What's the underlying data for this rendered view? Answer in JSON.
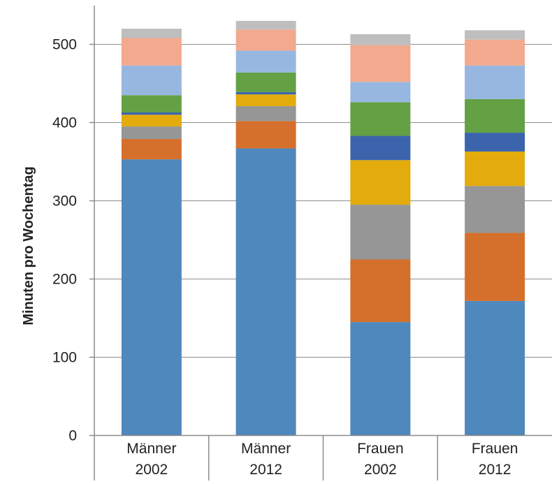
{
  "chart_data": {
    "type": "bar",
    "stacked": true,
    "title": "",
    "xlabel": "",
    "ylabel": "Minuten pro Wochentag",
    "ylim": [
      0,
      550
    ],
    "yticks": [
      0,
      100,
      200,
      300,
      400,
      500
    ],
    "grid": true,
    "legend": "none",
    "categories": [
      [
        "Männer",
        "2002"
      ],
      [
        "Männer",
        "2012"
      ],
      [
        "Frauen",
        "2002"
      ],
      [
        "Frauen",
        "2012"
      ]
    ],
    "series": [
      {
        "color": "#4f88bd",
        "values": [
          353,
          367,
          145,
          172
        ]
      },
      {
        "color": "#d56f2c",
        "values": [
          26,
          35,
          80,
          87
        ]
      },
      {
        "color": "#969696",
        "values": [
          16,
          19,
          70,
          60
        ]
      },
      {
        "color": "#e3ab0b",
        "values": [
          15,
          15,
          57,
          44
        ]
      },
      {
        "color": "#3c64ad",
        "values": [
          3,
          3,
          31,
          24
        ]
      },
      {
        "color": "#64a044",
        "values": [
          22,
          25,
          43,
          43
        ]
      },
      {
        "color": "#98b7e0",
        "values": [
          38,
          28,
          26,
          43
        ]
      },
      {
        "color": "#f2a98d",
        "values": [
          35,
          27,
          47,
          33
        ]
      },
      {
        "color": "#bebebe",
        "values": [
          12,
          11,
          14,
          12
        ]
      }
    ]
  }
}
